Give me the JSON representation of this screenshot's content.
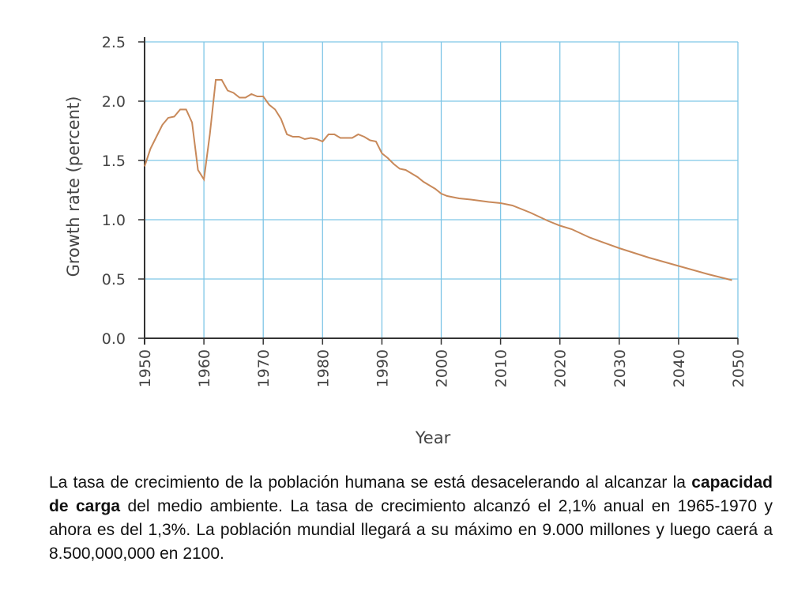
{
  "chart_data": {
    "type": "line",
    "title": "",
    "xlabel": "Year",
    "ylabel": "Growth rate (percent)",
    "xlim": [
      1950,
      2050
    ],
    "ylim": [
      0.0,
      2.5
    ],
    "x_ticks": [
      "1950",
      "1960",
      "1970",
      "1980",
      "1990",
      "2000",
      "2010",
      "2020",
      "2030",
      "2040",
      "2050"
    ],
    "y_ticks": [
      "0.0",
      "0.5",
      "1.0",
      "1.5",
      "2.0",
      "2.5"
    ],
    "grid": true,
    "line_color": "#c8895a",
    "grid_color": "#7fc6e6",
    "series": [
      {
        "x": [
          1950,
          1951,
          1952,
          1953,
          1954,
          1955,
          1956,
          1957,
          1958,
          1959,
          1960,
          1961,
          1962,
          1963,
          1964,
          1965,
          1966,
          1967,
          1968,
          1969,
          1970,
          1971,
          1972,
          1973,
          1974,
          1975,
          1976,
          1977,
          1978,
          1979,
          1980,
          1981,
          1982,
          1983,
          1984,
          1985,
          1986,
          1987,
          1988,
          1989,
          1990,
          1991,
          1992,
          1993,
          1994,
          1995,
          1996,
          1997,
          1998,
          1999,
          2000,
          2001,
          2002,
          2003,
          2005,
          2008,
          2010,
          2012,
          2015,
          2018,
          2020,
          2022,
          2025,
          2030,
          2035,
          2040,
          2045,
          2049
        ],
        "values": [
          1.45,
          1.6,
          1.7,
          1.8,
          1.86,
          1.87,
          1.93,
          1.93,
          1.82,
          1.42,
          1.34,
          1.72,
          2.18,
          2.18,
          2.09,
          2.07,
          2.03,
          2.03,
          2.06,
          2.04,
          2.04,
          1.97,
          1.93,
          1.85,
          1.72,
          1.7,
          1.7,
          1.68,
          1.69,
          1.68,
          1.66,
          1.72,
          1.72,
          1.69,
          1.69,
          1.69,
          1.72,
          1.7,
          1.67,
          1.66,
          1.56,
          1.52,
          1.47,
          1.43,
          1.42,
          1.39,
          1.36,
          1.32,
          1.29,
          1.26,
          1.22,
          1.2,
          1.19,
          1.18,
          1.17,
          1.15,
          1.14,
          1.12,
          1.06,
          0.99,
          0.95,
          0.92,
          0.85,
          0.76,
          0.68,
          0.61,
          0.54,
          0.49
        ]
      }
    ]
  },
  "caption": {
    "part1": "La tasa de crecimiento de la población humana se está desacelerando al alcanzar la ",
    "bold": "capacidad de carga",
    "part2": " del medio ambiente. La tasa de crecimiento alcanzó el 2,1% anual en 1965-1970 y ahora es del 1,3%. La población mundial llegará a su máximo en 9.000 millones y luego caerá a 8.500,000,000 en 2100."
  }
}
